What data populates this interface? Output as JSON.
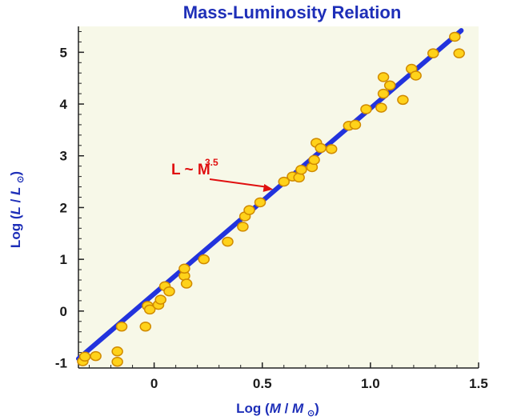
{
  "chart_data": {
    "type": "scatter",
    "title": "Mass-Luminosity Relation",
    "xlabel_parts": [
      "Log (",
      "M",
      " / ",
      "M",
      " ",
      "⊙",
      ")"
    ],
    "ylabel_parts": [
      "Log (",
      "L",
      " / ",
      "L",
      " ",
      "⊙",
      ")"
    ],
    "xlim": [
      -0.35,
      1.5
    ],
    "ylim": [
      -1.1,
      5.5
    ],
    "xticks": [
      0,
      0.5,
      1.0,
      1.5
    ],
    "xtick_labels": [
      "0",
      "0.5",
      "1.0",
      "1.5"
    ],
    "yticks": [
      -1,
      0,
      1,
      2,
      3,
      4,
      5
    ],
    "ytick_labels": [
      "-1",
      "0",
      "1",
      "2",
      "3",
      "4",
      "5"
    ],
    "grid": false,
    "plot_background": "#f7f8e8",
    "colors": {
      "title": "#1e2fb8",
      "fit_line": "#2233dd",
      "points_fill": "#ffd21a",
      "points_stroke": "#d08a00",
      "annotation": "#e01010"
    },
    "annotation": {
      "text": "L ~ M",
      "exponent": "3.5",
      "points_to": [
        0.55,
        2.35
      ]
    },
    "fit_line": {
      "x": [
        -0.35,
        1.42
      ],
      "y": [
        -0.92,
        5.42
      ]
    },
    "series": [
      {
        "points": [
          [
            -0.33,
            -0.97
          ],
          [
            -0.32,
            -0.88
          ],
          [
            -0.27,
            -0.87
          ],
          [
            -0.17,
            -0.78
          ],
          [
            -0.17,
            -0.98
          ],
          [
            -0.15,
            -0.3
          ],
          [
            -0.04,
            -0.3
          ],
          [
            -0.03,
            0.1
          ],
          [
            -0.02,
            0.03
          ],
          [
            0.02,
            0.12
          ],
          [
            0.03,
            0.22
          ],
          [
            0.05,
            0.48
          ],
          [
            0.07,
            0.38
          ],
          [
            0.14,
            0.68
          ],
          [
            0.14,
            0.82
          ],
          [
            0.15,
            0.53
          ],
          [
            0.23,
            1.0
          ],
          [
            0.34,
            1.34
          ],
          [
            0.41,
            1.63
          ],
          [
            0.42,
            1.83
          ],
          [
            0.44,
            1.95
          ],
          [
            0.49,
            2.1
          ],
          [
            0.6,
            2.5
          ],
          [
            0.64,
            2.6
          ],
          [
            0.67,
            2.58
          ],
          [
            0.68,
            2.73
          ],
          [
            0.73,
            2.78
          ],
          [
            0.74,
            2.92
          ],
          [
            0.75,
            3.25
          ],
          [
            0.77,
            3.15
          ],
          [
            0.82,
            3.13
          ],
          [
            0.9,
            3.58
          ],
          [
            0.93,
            3.6
          ],
          [
            0.98,
            3.9
          ],
          [
            1.05,
            3.93
          ],
          [
            1.06,
            4.2
          ],
          [
            1.06,
            4.52
          ],
          [
            1.09,
            4.36
          ],
          [
            1.15,
            4.08
          ],
          [
            1.19,
            4.68
          ],
          [
            1.21,
            4.55
          ],
          [
            1.29,
            4.98
          ],
          [
            1.39,
            5.3
          ],
          [
            1.41,
            4.98
          ]
        ]
      }
    ]
  }
}
